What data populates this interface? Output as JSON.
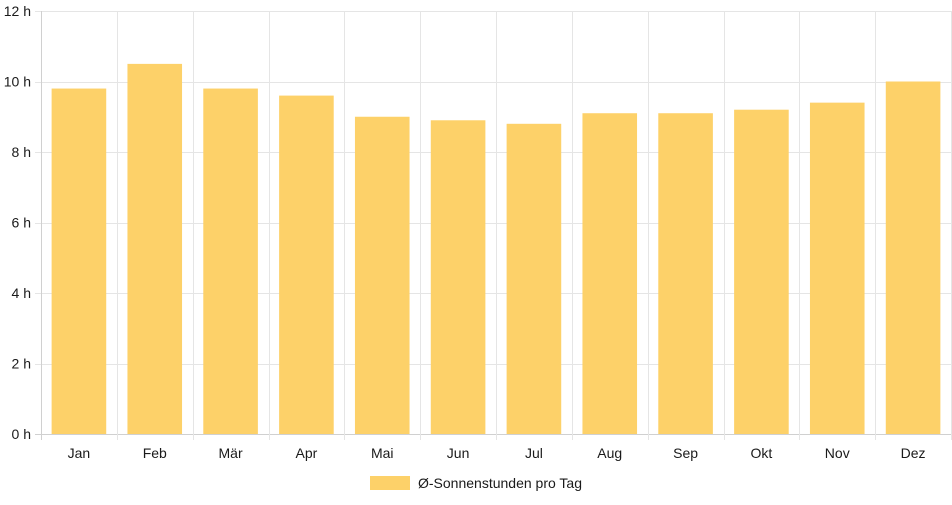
{
  "chart_data": {
    "type": "bar",
    "title": "",
    "xlabel": "",
    "ylabel": "",
    "categories": [
      "Jan",
      "Feb",
      "Mär",
      "Apr",
      "Mai",
      "Jun",
      "Jul",
      "Aug",
      "Sep",
      "Okt",
      "Nov",
      "Dez"
    ],
    "series": [
      {
        "name": "Ø-Sonnenstunden pro Tag",
        "values": [
          9.8,
          10.5,
          9.8,
          9.6,
          9.0,
          8.9,
          8.8,
          9.1,
          9.1,
          9.2,
          9.4,
          10.0
        ]
      }
    ],
    "ylim": [
      0,
      12
    ],
    "yticks": [
      0,
      2,
      4,
      6,
      8,
      10,
      12
    ],
    "ytick_suffix": " h",
    "grid": true,
    "legend_position": "bottom",
    "colors": {
      "bar": "#fdd169",
      "grid": "#e5e5e5",
      "axis": "#d0d0d0",
      "text": "#1a1a1a"
    }
  }
}
